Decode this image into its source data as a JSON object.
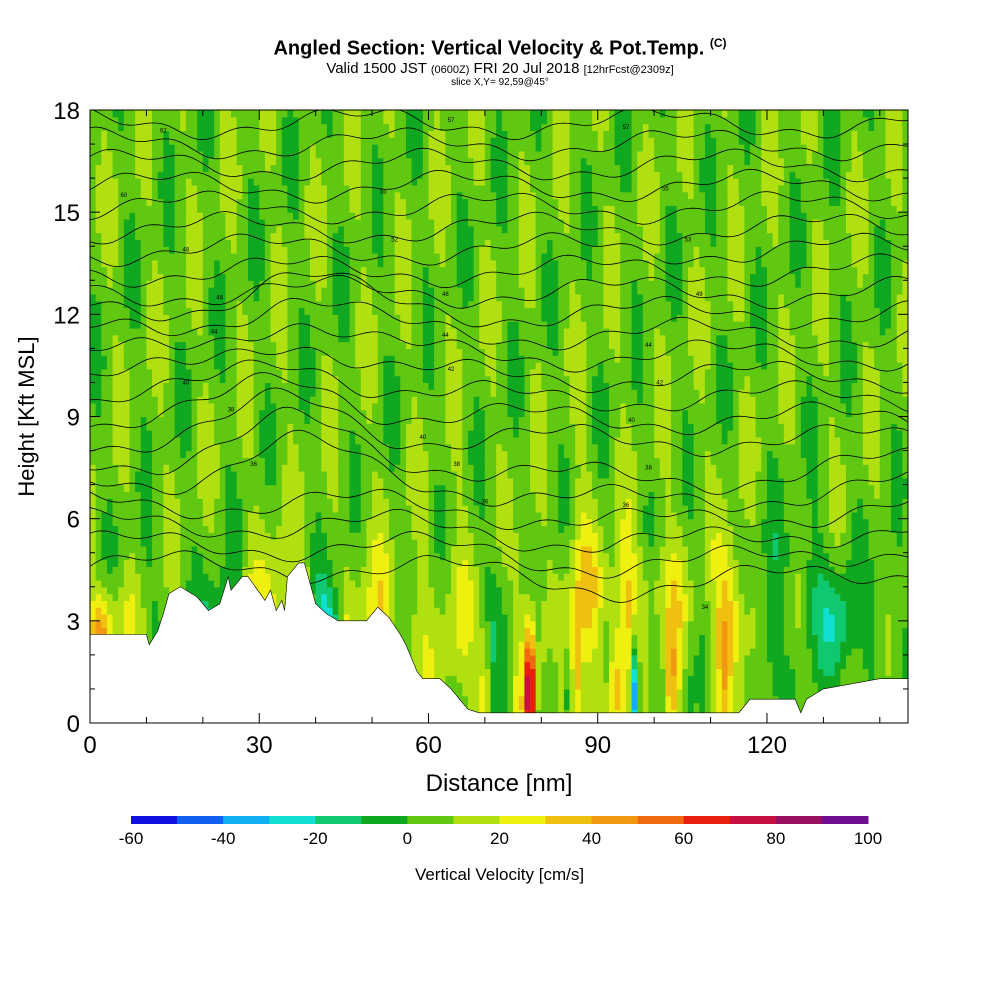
{
  "title": {
    "main": "Angled Section: Vertical Velocity & Pot.Temp.",
    "unit": "(C)"
  },
  "subtitle": {
    "valid": "Valid 1500 JST",
    "zulu": "(0600Z)",
    "date": "FRI 20 Jul 2018",
    "fcst": "[12hrFcst@2309z]",
    "slice": "slice X,Y= 92,59@45°"
  },
  "chart_data": {
    "type": "heatmap",
    "xlabel": "Distance [nm]",
    "ylabel": "Height [Kft MSL]",
    "xlim": [
      0,
      145
    ],
    "ylim": [
      0,
      18
    ],
    "xticks": [
      0,
      30,
      60,
      90,
      120
    ],
    "yticks": [
      0,
      3,
      6,
      9,
      12,
      15,
      18
    ],
    "colorbar": {
      "label": "Vertical Velocity [cm/s]",
      "ticks": [
        -60,
        -40,
        -20,
        0,
        20,
        40,
        60,
        80,
        100
      ],
      "levels": [
        -60,
        -50,
        -40,
        -30,
        -20,
        -10,
        0,
        10,
        20,
        30,
        40,
        50,
        60,
        70,
        80,
        90,
        100
      ],
      "colors": [
        "#1010e0",
        "#1060f0",
        "#10b0f0",
        "#10e0d0",
        "#10c870",
        "#10a820",
        "#60c810",
        "#b0e010",
        "#f0f010",
        "#f0c010",
        "#f09810",
        "#f06810",
        "#e82010",
        "#c81040",
        "#981060",
        "#701090"
      ]
    },
    "terrain_profile": {
      "x": [
        0,
        10,
        10.5,
        12,
        13,
        14,
        16,
        19,
        21,
        23,
        24.5,
        25,
        27,
        28,
        31,
        32,
        33,
        34,
        34.5,
        35,
        37,
        38,
        40,
        42,
        44,
        46,
        49,
        51,
        53,
        55,
        56,
        58,
        59,
        60,
        62,
        64,
        65,
        66,
        67,
        69,
        70,
        73,
        76,
        80,
        90,
        100,
        110,
        115,
        116,
        117,
        119,
        125,
        126,
        127,
        130,
        140,
        145
      ],
      "y": [
        2.6,
        2.6,
        2.3,
        2.7,
        3.2,
        3.8,
        4.0,
        3.7,
        3.3,
        3.5,
        4.3,
        3.9,
        4.3,
        4.3,
        3.6,
        3.9,
        3.3,
        3.6,
        3.3,
        4.3,
        4.7,
        4.7,
        3.5,
        3.2,
        3.0,
        3.0,
        3.0,
        3.4,
        3.1,
        2.6,
        2.3,
        1.5,
        1.3,
        1.3,
        1.3,
        1.0,
        0.8,
        0.6,
        0.4,
        0.3,
        0.3,
        0.3,
        0.3,
        0.3,
        0.3,
        0.3,
        0.3,
        0.3,
        0.5,
        0.7,
        0.7,
        0.7,
        0.3,
        0.7,
        1.0,
        1.3,
        1.3
      ]
    },
    "contour_labels": [
      {
        "x": 13,
        "y": 17.4,
        "text": "62"
      },
      {
        "x": 6,
        "y": 15.5,
        "text": "60"
      },
      {
        "x": 17,
        "y": 13.9,
        "text": "48"
      },
      {
        "x": 23,
        "y": 12.5,
        "text": "46"
      },
      {
        "x": 22,
        "y": 11.5,
        "text": "44"
      },
      {
        "x": 17,
        "y": 10.0,
        "text": "40"
      },
      {
        "x": 25,
        "y": 9.2,
        "text": "38"
      },
      {
        "x": 29,
        "y": 7.6,
        "text": "36"
      },
      {
        "x": 64,
        "y": 17.7,
        "text": "57"
      },
      {
        "x": 52,
        "y": 15.6,
        "text": "55"
      },
      {
        "x": 54,
        "y": 14.2,
        "text": "52"
      },
      {
        "x": 63,
        "y": 12.6,
        "text": "48"
      },
      {
        "x": 63,
        "y": 11.4,
        "text": "44"
      },
      {
        "x": 64,
        "y": 10.4,
        "text": "42"
      },
      {
        "x": 59,
        "y": 8.4,
        "text": "40"
      },
      {
        "x": 65,
        "y": 7.6,
        "text": "38"
      },
      {
        "x": 70,
        "y": 6.5,
        "text": "36"
      },
      {
        "x": 95,
        "y": 17.5,
        "text": "57"
      },
      {
        "x": 102,
        "y": 15.7,
        "text": "55"
      },
      {
        "x": 106,
        "y": 14.2,
        "text": "53"
      },
      {
        "x": 108,
        "y": 12.6,
        "text": "49"
      },
      {
        "x": 99,
        "y": 11.1,
        "text": "44"
      },
      {
        "x": 101,
        "y": 10.0,
        "text": "42"
      },
      {
        "x": 96,
        "y": 8.9,
        "text": "40"
      },
      {
        "x": 99,
        "y": 7.5,
        "text": "38"
      },
      {
        "x": 95,
        "y": 6.4,
        "text": "36"
      },
      {
        "x": 109,
        "y": 3.4,
        "text": "34"
      }
    ]
  }
}
